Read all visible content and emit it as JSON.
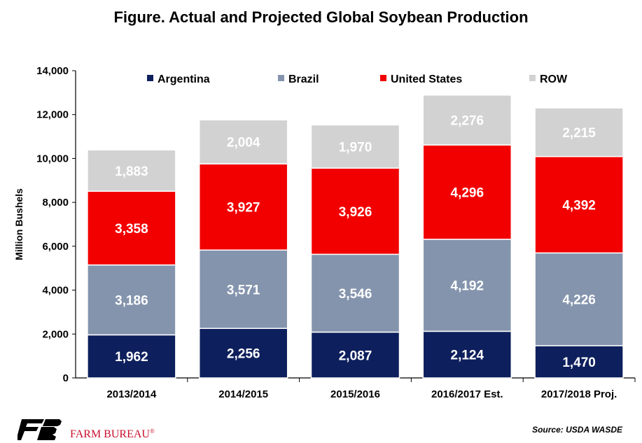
{
  "chart_data": {
    "type": "bar",
    "stacked": true,
    "title": "Figure. Actual and Projected Global Soybean Production",
    "ylabel": "Million Bushels",
    "xlabel": "",
    "ylim": [
      0,
      14000
    ],
    "yticks": [
      0,
      2000,
      4000,
      6000,
      8000,
      10000,
      12000,
      14000
    ],
    "ytick_labels": [
      "0",
      "2,000",
      "4,000",
      "6,000",
      "8,000",
      "10,000",
      "12,000",
      "14,000"
    ],
    "grid": false,
    "legend_position": "top",
    "categories": [
      "2013/2014",
      "2014/2015",
      "2015/2016",
      "2016/2017 Est.",
      "2017/2018 Proj."
    ],
    "series": [
      {
        "name": "Argentina",
        "color": "#0d1f5c",
        "values": [
          1962,
          2256,
          2087,
          2124,
          1470
        ],
        "labels": [
          "1,962",
          "2,256",
          "2,087",
          "2,124",
          "1,470"
        ]
      },
      {
        "name": "Brazil",
        "color": "#8494ad",
        "values": [
          3186,
          3571,
          3546,
          4192,
          4226
        ],
        "labels": [
          "3,186",
          "3,571",
          "3,546",
          "4,192",
          "4,226"
        ]
      },
      {
        "name": "United States",
        "color": "#f20000",
        "values": [
          3358,
          3927,
          3926,
          4296,
          4392
        ],
        "labels": [
          "3,358",
          "3,927",
          "3,926",
          "4,296",
          "4,392"
        ]
      },
      {
        "name": "ROW",
        "color": "#d2d2d2",
        "values": [
          1883,
          2004,
          1970,
          2276,
          2215
        ],
        "labels": [
          "1,883",
          "2,004",
          "1,970",
          "2,276",
          "2,215"
        ]
      }
    ]
  },
  "footer": {
    "logo_text": "FARM BUREAU",
    "logo_mark": "®",
    "logo_color": "#c8102e",
    "source": "Source: USDA WASDE"
  }
}
